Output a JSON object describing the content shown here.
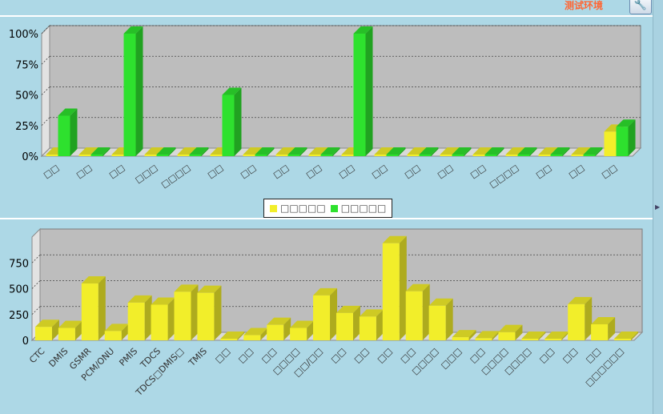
{
  "header": {
    "env_label": "测试环境",
    "tool_icon": "wrench-icon"
  },
  "colors": {
    "yellow": "#f2ee2a",
    "green": "#2ee12e"
  },
  "chart_data": [
    {
      "type": "bar",
      "y_ticks": [
        "100%",
        "75%",
        "50%",
        "25%",
        "0%"
      ],
      "ylim": [
        0,
        100
      ],
      "categories": [
        "□□",
        "□□",
        "□□",
        "□□□",
        "□□□□",
        "□□",
        "□□",
        "□□",
        "□□",
        "□□",
        "□□",
        "□□",
        "□□",
        "□□",
        "□□□□",
        "□□",
        "□□",
        "□□"
      ],
      "series": [
        {
          "color": "#f2ee2a",
          "values": [
            0,
            0,
            0,
            0,
            0,
            0,
            0,
            0,
            0,
            0,
            0,
            0,
            0,
            0,
            0,
            0,
            0,
            20
          ]
        },
        {
          "color": "#2ee12e",
          "values": [
            33,
            0,
            100,
            0,
            0,
            50,
            0,
            0,
            0,
            100,
            0,
            0,
            0,
            0,
            0,
            0,
            0,
            24
          ]
        }
      ],
      "legend": {
        "placement": "bottom-center",
        "items": [
          "□□□□□",
          "□□□□□"
        ]
      },
      "grid": true
    },
    {
      "type": "bar",
      "y_ticks": [
        "750",
        "500",
        "250",
        "0"
      ],
      "ylim": [
        0,
        1000
      ],
      "categories": [
        "CTC",
        "DMIS",
        "GSMR",
        "PCM/ONU",
        "PMIS",
        "TDCS",
        "TDCS□DMIS□",
        "TMIS",
        "□□",
        "□□",
        "□□",
        "□□□□",
        "□□/□□",
        "□□",
        "□□",
        "□□",
        "□□",
        "□□□□",
        "□□□",
        "□□",
        "□□□□",
        "□□□□",
        "□□",
        "□□",
        "□□",
        "□□□□□□"
      ],
      "series": [
        {
          "color": "#f2ee2a",
          "values": [
            130,
            120,
            550,
            90,
            365,
            345,
            470,
            460,
            10,
            50,
            150,
            120,
            435,
            265,
            230,
            940,
            475,
            335,
            30,
            20,
            80,
            10,
            5,
            350,
            155,
            10
          ]
        }
      ],
      "grid": true
    }
  ]
}
